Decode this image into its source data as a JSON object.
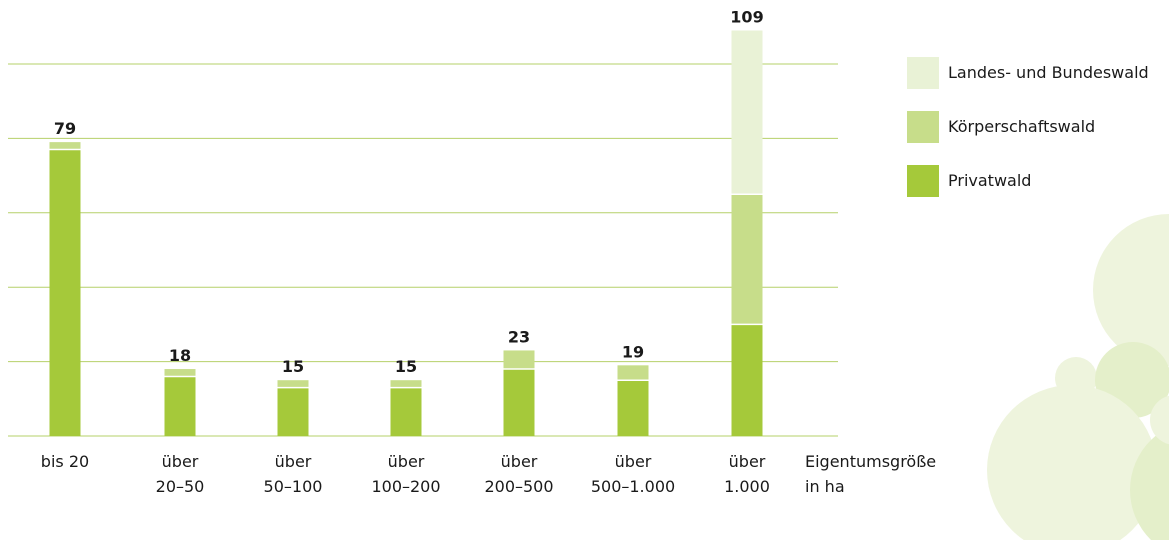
{
  "colors": {
    "privatwald": "#a5c93a",
    "koerperschaftswald": "#c7dd8a",
    "landes_bundeswald": "#e9f2d6",
    "gridline": "#b6d06a",
    "deco_circle": "#eef4dd",
    "deco_circle_dark": "#e4efca"
  },
  "chart_data": {
    "type": "bar",
    "stacked": true,
    "categories": [
      [
        "bis 20"
      ],
      [
        "über",
        "20–50"
      ],
      [
        "über",
        "50–100"
      ],
      [
        "über",
        "100–200"
      ],
      [
        "über",
        "200–500"
      ],
      [
        "über",
        "500–1.000"
      ],
      [
        "über",
        "1.000"
      ]
    ],
    "xlabel": [
      "Eigentumsgröße",
      "in ha"
    ],
    "totals": [
      "79",
      "18",
      "15",
      "15",
      "23",
      "19",
      "109"
    ],
    "series": [
      {
        "name": "Privatwald",
        "color_key": "privatwald",
        "values": [
          77,
          16,
          13,
          13,
          18,
          15,
          30
        ]
      },
      {
        "name": "Körperschaftswald",
        "color_key": "koerperschaftswald",
        "values": [
          2,
          2,
          2,
          2,
          5,
          4,
          35
        ]
      },
      {
        "name": "Landes- und Bundeswald",
        "color_key": "landes_bundeswald",
        "values": [
          0,
          0,
          0,
          0,
          0,
          0,
          44
        ]
      }
    ],
    "legend_order": [
      "Landes- und Bundeswald",
      "Körperschaftswald",
      "Privatwald"
    ],
    "legend_position": "top-right",
    "ylim": [
      0,
      110
    ],
    "gridlines": [
      20,
      40,
      60,
      80,
      100
    ],
    "grid": true
  }
}
